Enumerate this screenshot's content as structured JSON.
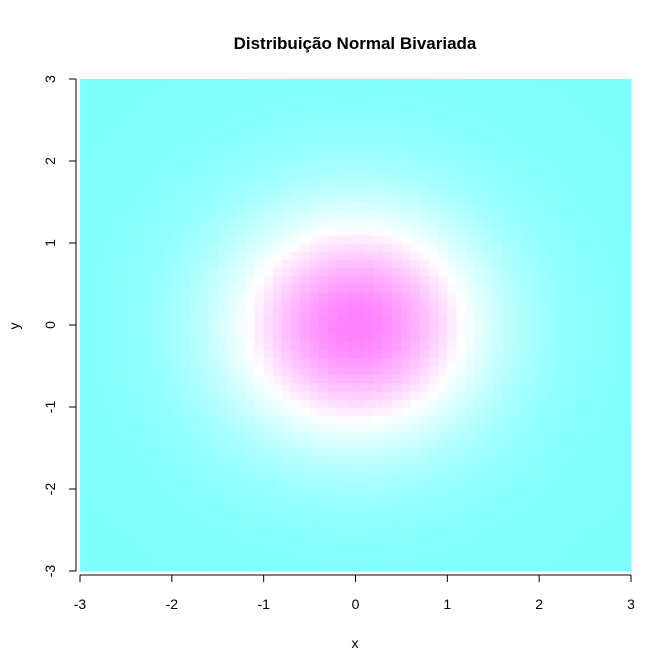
{
  "chart_data": {
    "type": "heatmap",
    "title": "Distribuição Normal Bivariada",
    "xlabel": "x",
    "ylabel": "y",
    "xlim": [
      -3,
      3
    ],
    "ylim": [
      -3,
      3
    ],
    "x_ticks": [
      -3,
      -2,
      -1,
      0,
      1,
      2,
      3
    ],
    "y_ticks": [
      -3,
      -2,
      -1,
      0,
      1,
      2,
      3
    ],
    "x_tick_labels": [
      "-3",
      "-2",
      "-1",
      "0",
      "1",
      "2",
      "3"
    ],
    "y_tick_labels": [
      "-3",
      "-2",
      "-1",
      "0",
      "1",
      "2",
      "3"
    ],
    "density": {
      "function": "bivariate_normal",
      "mean": [
        0,
        0
      ],
      "sd": [
        1,
        1
      ],
      "rho": 0
    },
    "grid_resolution": 60,
    "color_palette": [
      "#80FFFF",
      "#FFFFFF",
      "#FF80FF"
    ],
    "grid": false,
    "legend": "none"
  }
}
